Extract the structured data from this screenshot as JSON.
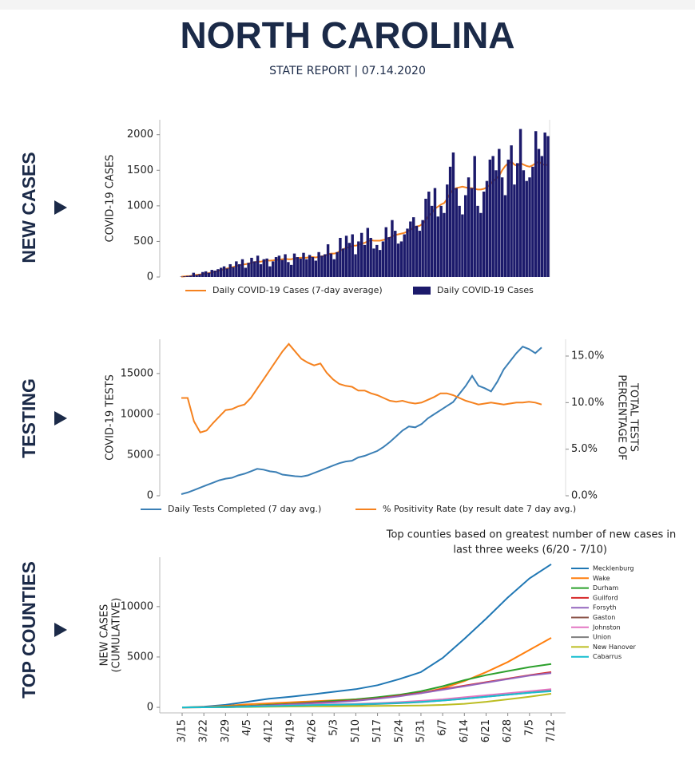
{
  "header": {
    "title": "NORTH CAROLINA",
    "subtitle": "STATE REPORT | 07.14.2020"
  },
  "chart_data": [
    {
      "type": "bar",
      "section": "NEW CASES",
      "ylabel": [
        "COVID-19 CASES"
      ],
      "ylim": [
        0,
        2210
      ],
      "yticks": [
        0,
        500,
        1000,
        1500,
        2000
      ],
      "legend": "bottom",
      "series": [
        {
          "name": "Daily COVID-19 Cases (7-day average)",
          "type": "line",
          "color": "#f5821f",
          "values": [
            5,
            8,
            12,
            15,
            25,
            30,
            35,
            40,
            50,
            55,
            65,
            75,
            85,
            95,
            110,
            120,
            130,
            140,
            155,
            165,
            175,
            180,
            190,
            200,
            210,
            215,
            215,
            225,
            235,
            230,
            235,
            240,
            245,
            250,
            255,
            250,
            250,
            260,
            265,
            270,
            270,
            270,
            280,
            280,
            275,
            285,
            290,
            300,
            320,
            330,
            330,
            340,
            370,
            390,
            410,
            420,
            440,
            440,
            450,
            470,
            480,
            500,
            520,
            510,
            510,
            510,
            520,
            530,
            550,
            570,
            590,
            600,
            610,
            620,
            640,
            660,
            690,
            710,
            720,
            750,
            800,
            860,
            900,
            960,
            990,
            1020,
            1040,
            1100,
            1170,
            1230,
            1250,
            1260,
            1270,
            1260,
            1250,
            1250,
            1240,
            1230,
            1230,
            1240,
            1260,
            1300,
            1350,
            1380,
            1420,
            1500,
            1560,
            1600,
            1620,
            1580,
            1560,
            1600,
            1580,
            1560,
            1550,
            1570,
            1600,
            1620,
            1590,
            1570,
            1580
          ]
        },
        {
          "name": "Daily COVID-19 Cases",
          "type": "bar",
          "color": "#1c1a6b",
          "values": [
            5,
            10,
            15,
            20,
            60,
            30,
            40,
            70,
            80,
            60,
            100,
            90,
            110,
            130,
            150,
            120,
            180,
            140,
            220,
            180,
            250,
            130,
            200,
            270,
            220,
            300,
            180,
            250,
            260,
            150,
            220,
            280,
            300,
            240,
            320,
            210,
            170,
            330,
            280,
            260,
            340,
            250,
            310,
            280,
            230,
            350,
            300,
            320,
            460,
            330,
            250,
            350,
            550,
            400,
            580,
            480,
            600,
            320,
            500,
            620,
            450,
            690,
            550,
            400,
            450,
            380,
            500,
            700,
            560,
            800,
            650,
            470,
            500,
            600,
            680,
            780,
            840,
            720,
            650,
            800,
            1100,
            1200,
            1000,
            1250,
            850,
            1000,
            900,
            1300,
            1550,
            1750,
            1250,
            1000,
            880,
            1150,
            1400,
            1250,
            1700,
            1000,
            900,
            1200,
            1350,
            1650,
            1700,
            1500,
            1800,
            1400,
            1150,
            1650,
            1850,
            1300,
            1600,
            2080,
            1500,
            1350,
            1400,
            1550,
            2050,
            1800,
            1700,
            2030,
            1980
          ]
        }
      ]
    },
    {
      "type": "line",
      "section": "TESTING",
      "ylabel": [
        "COVID-19 TESTS"
      ],
      "y2label": [
        "PERCENTAGE OF",
        "TOTAL TESTS"
      ],
      "ylim": [
        0,
        19200
      ],
      "yticks": [
        0,
        5000,
        10000,
        15000
      ],
      "y2lim": [
        0,
        16.8
      ],
      "y2ticks": [
        {
          "value": 0,
          "label": "0.0%"
        },
        {
          "value": 5,
          "label": "5.0%"
        },
        {
          "value": 10,
          "label": "10.0%"
        },
        {
          "value": 15,
          "label": "15.0%"
        }
      ],
      "legend": "bottom",
      "series": [
        {
          "name": "Daily Tests Completed (7 day avg.)",
          "color": "#3b7fb5",
          "values": [
            200,
            400,
            700,
            1000,
            1300,
            1600,
            1900,
            2100,
            2200,
            2500,
            2700,
            3000,
            3300,
            3200,
            3000,
            2900,
            2600,
            2500,
            2400,
            2350,
            2500,
            2800,
            3100,
            3400,
            3700,
            4000,
            4200,
            4300,
            4700,
            4900,
            5200,
            5500,
            6000,
            6600,
            7300,
            8000,
            8500,
            8400,
            8800,
            9500,
            10000,
            10500,
            11000,
            11500,
            12500,
            13500,
            14700,
            13500,
            13200,
            12800,
            14000,
            15500,
            16500,
            17500,
            18300,
            18000,
            17500,
            18200
          ]
        },
        {
          "name": "% Positivity Rate (by result date 7 day avg.)",
          "color": "#f5821f",
          "axis": "y2",
          "values": [
            10.5,
            10.5,
            8,
            6.8,
            7,
            7.8,
            8.5,
            9.2,
            9.3,
            9.6,
            9.8,
            10.5,
            11.5,
            12.5,
            13.5,
            14.5,
            15.5,
            16.3,
            15.5,
            14.7,
            14.3,
            14,
            14.2,
            13.2,
            12.5,
            12,
            11.8,
            11.7,
            11.3,
            11.3,
            11,
            10.8,
            10.5,
            10.2,
            10.1,
            10.2,
            10,
            9.9,
            10,
            10.3,
            10.6,
            11,
            11,
            10.8,
            10.5,
            10.2,
            10,
            9.8,
            9.9,
            10,
            9.9,
            9.8,
            9.9,
            10,
            10,
            10.1,
            10,
            9.8
          ]
        }
      ]
    },
    {
      "type": "line",
      "section": "TOP COUNTIES",
      "title": [
        "Top counties based on greatest number of new cases in",
        "last three weeks (6/20 - 7/10)"
      ],
      "ylabel": [
        "NEW CASES",
        "(CUMULATIVE)"
      ],
      "ylim": [
        -550,
        14900
      ],
      "yticks": [
        0,
        5000,
        10000
      ],
      "legend": "right",
      "categories": [
        "3/15",
        "3/22",
        "3/29",
        "4/5",
        "4/12",
        "4/19",
        "4/26",
        "5/3",
        "5/10",
        "5/17",
        "5/24",
        "5/31",
        "6/7",
        "6/14",
        "6/21",
        "6/28",
        "7/5",
        "7/12"
      ],
      "series": [
        {
          "name": "Mecklenburg",
          "color": "#1f77b4",
          "values": [
            0,
            60,
            250,
            550,
            850,
            1050,
            1300,
            1550,
            1800,
            2200,
            2800,
            3500,
            4900,
            6800,
            8800,
            10900,
            12800,
            14200
          ]
        },
        {
          "name": "Wake",
          "color": "#ff7f0e",
          "values": [
            0,
            40,
            150,
            300,
            400,
            500,
            600,
            700,
            800,
            950,
            1150,
            1400,
            1900,
            2600,
            3500,
            4500,
            5700,
            6900
          ]
        },
        {
          "name": "Durham",
          "color": "#2ca02c",
          "values": [
            0,
            20,
            80,
            150,
            250,
            350,
            500,
            650,
            800,
            1000,
            1250,
            1600,
            2100,
            2700,
            3200,
            3600,
            4000,
            4300
          ]
        },
        {
          "name": "Guilford",
          "color": "#d62728",
          "values": [
            0,
            10,
            50,
            100,
            200,
            300,
            450,
            550,
            700,
            900,
            1150,
            1450,
            1800,
            2150,
            2500,
            2850,
            3200,
            3500
          ]
        },
        {
          "name": "Forsyth",
          "color": "#9467bd",
          "values": [
            0,
            10,
            40,
            100,
            180,
            280,
            400,
            500,
            650,
            850,
            1100,
            1400,
            1750,
            2100,
            2450,
            2800,
            3150,
            3400
          ]
        },
        {
          "name": "Gaston",
          "color": "#8c564b",
          "values": [
            0,
            5,
            30,
            60,
            100,
            150,
            200,
            250,
            300,
            380,
            480,
            600,
            750,
            950,
            1150,
            1350,
            1550,
            1750
          ]
        },
        {
          "name": "Johnston",
          "color": "#e377c2",
          "values": [
            0,
            5,
            30,
            70,
            120,
            180,
            250,
            300,
            350,
            420,
            520,
            650,
            800,
            1000,
            1200,
            1400,
            1600,
            1800
          ]
        },
        {
          "name": "Union",
          "color": "#7f7f7f",
          "values": [
            0,
            5,
            30,
            60,
            100,
            140,
            180,
            220,
            270,
            330,
            410,
            520,
            680,
            860,
            1050,
            1250,
            1450,
            1650
          ]
        },
        {
          "name": "New Hanover",
          "color": "#bcbd22",
          "values": [
            0,
            5,
            20,
            40,
            60,
            80,
            100,
            110,
            120,
            140,
            160,
            190,
            240,
            350,
            550,
            800,
            1050,
            1350
          ]
        },
        {
          "name": "Cabarrus",
          "color": "#17becf",
          "values": [
            0,
            5,
            30,
            70,
            120,
            170,
            220,
            260,
            300,
            360,
            440,
            540,
            680,
            850,
            1050,
            1250,
            1450,
            1600
          ]
        }
      ]
    }
  ]
}
